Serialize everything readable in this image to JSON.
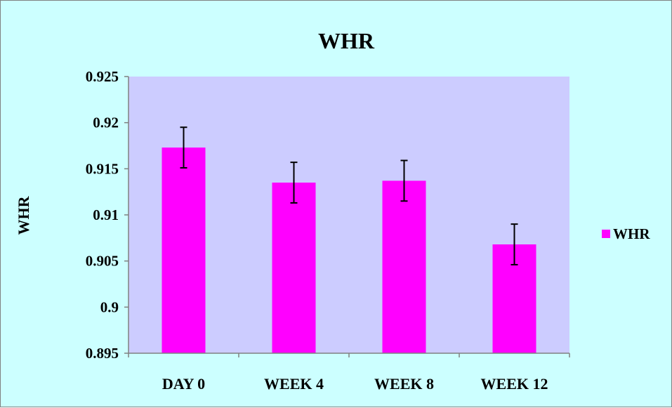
{
  "chart_data": {
    "type": "bar",
    "title": "WHR",
    "xlabel": "",
    "ylabel": "WHR",
    "categories": [
      "DAY 0",
      "WEEK 4",
      "WEEK 8",
      "WEEK 12"
    ],
    "series": [
      {
        "name": "WHR",
        "values": [
          0.9173,
          0.9135,
          0.9137,
          0.9068
        ],
        "error": [
          0.0022,
          0.0022,
          0.0022,
          0.0022
        ],
        "color": "#FF00FF"
      }
    ],
    "ylim": [
      0.895,
      0.925
    ],
    "yticks": [
      "0.925",
      "0.92",
      "0.915",
      "0.91",
      "0.905",
      "0.9",
      "0.895"
    ],
    "grid": false,
    "legend": "right",
    "colors": {
      "chart_background": "#CCFFFF",
      "plot_background": "#CCCCFF",
      "bar": "#FF00FF",
      "axis": "#808080",
      "error_bar": "#000000"
    }
  }
}
